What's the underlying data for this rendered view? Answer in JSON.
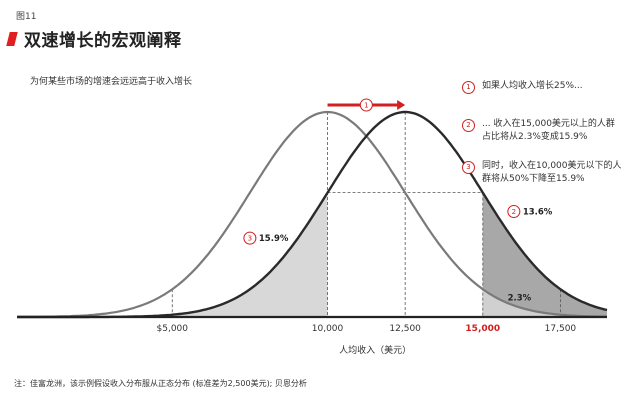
{
  "figure_label": "图11",
  "title": "双速增长的宏观阐释",
  "subtitle": "为何某些市场的增速会远远高于收入增长",
  "notes": [
    {
      "num": "1",
      "text": "如果人均收入增长25%..."
    },
    {
      "num": "2",
      "text": "... 收入在15,000美元以上的人群占比将从2.3%变成15.9%"
    },
    {
      "num": "3",
      "text": "同时，收入在10,000美元以下的人群将从50%下降至15.9%"
    }
  ],
  "footnote": "注：佳富龙洲，该示例假设收入分布服从正态分布 (标准差为2,500美元); 贝恩分析",
  "chart_data": {
    "type": "area",
    "xlabel": "人均收入（美元）",
    "xlim": [
      0,
      19000
    ],
    "ticks": [
      {
        "value": 5000,
        "label": "$5,000",
        "highlight": false
      },
      {
        "value": 10000,
        "label": "10,000",
        "highlight": false
      },
      {
        "value": 12500,
        "label": "12,500",
        "highlight": false
      },
      {
        "value": 15000,
        "label": "15,000",
        "highlight": true
      },
      {
        "value": 17500,
        "label": "17,500",
        "highlight": false
      }
    ],
    "series": [
      {
        "mean": 10000,
        "sd": 2500,
        "color": "#7a7a7a"
      },
      {
        "mean": 12500,
        "sd": 2500,
        "color": "#2a2a2a"
      }
    ],
    "shaded": [
      {
        "from": 0,
        "to": 10000,
        "series": 1,
        "color": "#d8d8d8"
      },
      {
        "from": 15000,
        "to": 19000,
        "series": 1,
        "color": "#a8a8a8"
      },
      {
        "from": 15000,
        "to": 19000,
        "series": 0,
        "color": "#d0d0d0"
      }
    ],
    "annotations": [
      {
        "num": "3",
        "text": "15.9%",
        "x": 7500,
        "y_frac": 0.37
      },
      {
        "num": "2",
        "text": "13.6%",
        "x": 16000,
        "y_frac": 0.5
      },
      {
        "num": "",
        "text": "2.3%",
        "x": 15800,
        "y_frac": 0.08
      }
    ],
    "arrow": {
      "num": "1",
      "from": 10000,
      "to": 12500
    },
    "accent_color": "#d02020"
  }
}
